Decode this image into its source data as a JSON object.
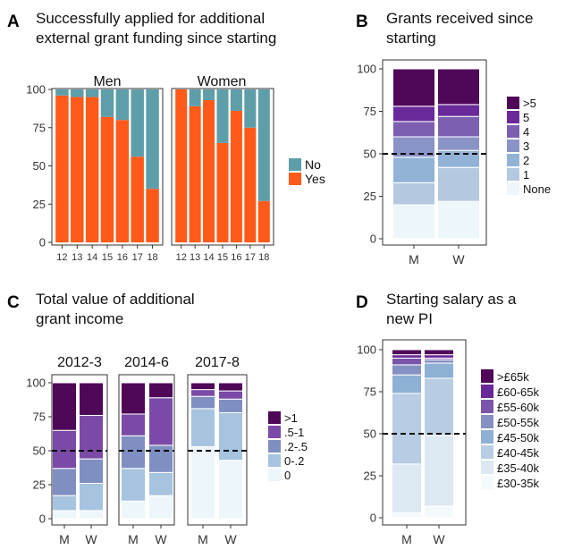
{
  "chart_data": [
    {
      "panel_id": "A",
      "type": "bar",
      "stacked": true,
      "title": "Successfully applied for additional external grant funding since starting",
      "title_lines": [
        "Successfully applied for additional",
        "external grant funding since starting"
      ],
      "facets": [
        {
          "label": "Men",
          "categories": [
            "12",
            "13",
            "14",
            "15",
            "16",
            "17",
            "18"
          ],
          "series": [
            {
              "name": "Yes",
              "values": [
                96,
                95,
                95,
                82,
                80,
                56,
                35
              ]
            },
            {
              "name": "No",
              "values": [
                4,
                5,
                5,
                18,
                20,
                44,
                65
              ]
            }
          ]
        },
        {
          "label": "Women",
          "categories": [
            "12",
            "13",
            "14",
            "15",
            "16",
            "17",
            "18"
          ],
          "series": [
            {
              "name": "Yes",
              "values": [
                100,
                89,
                93,
                65,
                86,
                75,
                27
              ]
            },
            {
              "name": "No",
              "values": [
                0,
                11,
                7,
                35,
                14,
                25,
                73
              ]
            }
          ]
        }
      ],
      "yticks": [
        0,
        25,
        50,
        75,
        100
      ],
      "ylim": [
        0,
        100
      ],
      "legend": [
        "No",
        "Yes"
      ],
      "colors": {
        "No": "#5e9ea8",
        "Yes": "#ff5a1a"
      }
    },
    {
      "panel_id": "B",
      "type": "bar",
      "stacked": true,
      "title": "Grants received since starting",
      "title_lines": [
        "Grants received since",
        "starting"
      ],
      "categories": [
        "M",
        "W"
      ],
      "series": [
        {
          "name": "None",
          "values": [
            20,
            22
          ]
        },
        {
          "name": "1",
          "values": [
            13,
            20
          ]
        },
        {
          "name": "2",
          "values": [
            15,
            10
          ]
        },
        {
          "name": "3",
          "values": [
            12,
            8
          ]
        },
        {
          "name": "4",
          "values": [
            9,
            12
          ]
        },
        {
          "name": "5",
          "values": [
            9,
            7
          ]
        },
        {
          "name": ">5",
          "values": [
            22,
            21
          ]
        }
      ],
      "yticks": [
        0,
        25,
        50,
        75,
        100
      ],
      "ylim": [
        0,
        100
      ],
      "reference_line": 50,
      "legend": [
        ">5",
        "5",
        "4",
        "3",
        "2",
        "1",
        "None"
      ],
      "colors": [
        "#edf6fa",
        "#b4c8e0",
        "#92b3d6",
        "#8a93c6",
        "#7c5fb1",
        "#6a2a9a",
        "#4f0758"
      ]
    },
    {
      "panel_id": "C",
      "type": "bar",
      "stacked": true,
      "title": "Total value of additional grant income",
      "title_lines": [
        "Total value of additional",
        "grant income"
      ],
      "facets": [
        {
          "label": "2012-3",
          "categories": [
            "M",
            "W"
          ],
          "series": [
            {
              "name": "0",
              "values": [
                6,
                6
              ]
            },
            {
              "name": "0-.2",
              "values": [
                11,
                20
              ]
            },
            {
              "name": ".2-.5",
              "values": [
                20,
                18
              ]
            },
            {
              "name": ".5-1",
              "values": [
                28,
                32
              ]
            },
            {
              "name": ">1",
              "values": [
                35,
                24
              ]
            }
          ]
        },
        {
          "label": "2014-6",
          "categories": [
            "M",
            "W"
          ],
          "series": [
            {
              "name": "0",
              "values": [
                13,
                17
              ]
            },
            {
              "name": "0-.2",
              "values": [
                24,
                17
              ]
            },
            {
              "name": ".2-.5",
              "values": [
                24,
                20
              ]
            },
            {
              "name": ".5-1",
              "values": [
                16,
                35
              ]
            },
            {
              "name": ">1",
              "values": [
                23,
                11
              ]
            }
          ]
        },
        {
          "label": "2017-8",
          "categories": [
            "M",
            "W"
          ],
          "series": [
            {
              "name": "0",
              "values": [
                53,
                43
              ]
            },
            {
              "name": "0-.2",
              "values": [
                28,
                35
              ]
            },
            {
              "name": ".2-.5",
              "values": [
                9,
                10
              ]
            },
            {
              "name": ".5-1",
              "values": [
                5,
                6
              ]
            },
            {
              "name": ">1",
              "values": [
                5,
                6
              ]
            }
          ]
        }
      ],
      "yticks": [
        0,
        25,
        50,
        75,
        100
      ],
      "ylim": [
        0,
        100
      ],
      "reference_line": 50,
      "legend": [
        ">1",
        ".5-1",
        ".2-.5",
        "0-.2",
        "0"
      ],
      "colors": [
        "#edf6fa",
        "#a6c3df",
        "#7f8fc2",
        "#7b4aa7",
        "#4f0758"
      ]
    },
    {
      "panel_id": "D",
      "type": "bar",
      "stacked": true,
      "title": "Starting salary as a new PI",
      "title_lines": [
        "Starting salary as a",
        "new PI"
      ],
      "categories": [
        "M",
        "W"
      ],
      "series": [
        {
          "name": "£30-35k",
          "values": [
            3,
            7
          ]
        },
        {
          "name": "£35-40k",
          "values": [
            29,
            42
          ]
        },
        {
          "name": "£40-45k",
          "values": [
            42,
            34
          ]
        },
        {
          "name": "£45-50k",
          "values": [
            11,
            9
          ]
        },
        {
          "name": "£50-55k",
          "values": [
            6,
            2
          ]
        },
        {
          "name": "£55-60k",
          "values": [
            4,
            1
          ]
        },
        {
          "name": "£60-65k",
          "values": [
            2,
            2
          ]
        },
        {
          "name": ">£65k",
          "values": [
            3,
            3
          ]
        }
      ],
      "yticks": [
        0,
        25,
        50,
        75,
        100
      ],
      "ylim": [
        0,
        100
      ],
      "reference_line": 50,
      "legend": [
        ">£65k",
        "£60-65k",
        "£55-60k",
        "£50-55k",
        "£45-50k",
        "£40-45k",
        "£35-40k",
        "£30-35k"
      ],
      "colors": [
        "#f4f9fc",
        "#dce8f2",
        "#b8cde3",
        "#8fb0d5",
        "#8590c3",
        "#7a55ab",
        "#6a2797",
        "#4f0758"
      ]
    }
  ]
}
